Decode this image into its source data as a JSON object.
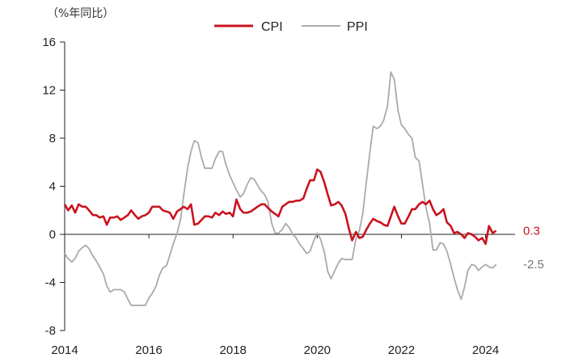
{
  "chart_data": {
    "type": "line",
    "unit_label": "（%年同比）",
    "ylim": [
      -8,
      16
    ],
    "yticks": [
      -8,
      -4,
      0,
      4,
      8,
      12,
      16
    ],
    "xlim": [
      2014.0,
      2024.7
    ],
    "xticks": [
      2014,
      2016,
      2018,
      2020,
      2022,
      2024
    ],
    "grid": false,
    "legend": "top-center",
    "series": [
      {
        "name": "CPI",
        "color": "#c8141e",
        "end_label": "0.3",
        "points": [
          [
            2014.0,
            2.5
          ],
          [
            2014.08,
            2.0
          ],
          [
            2014.17,
            2.4
          ],
          [
            2014.25,
            1.8
          ],
          [
            2014.33,
            2.5
          ],
          [
            2014.42,
            2.3
          ],
          [
            2014.5,
            2.3
          ],
          [
            2014.58,
            2.0
          ],
          [
            2014.67,
            1.6
          ],
          [
            2014.75,
            1.6
          ],
          [
            2014.83,
            1.4
          ],
          [
            2014.92,
            1.5
          ],
          [
            2015.0,
            0.8
          ],
          [
            2015.08,
            1.4
          ],
          [
            2015.17,
            1.4
          ],
          [
            2015.25,
            1.5
          ],
          [
            2015.33,
            1.2
          ],
          [
            2015.42,
            1.4
          ],
          [
            2015.5,
            1.6
          ],
          [
            2015.58,
            2.0
          ],
          [
            2015.67,
            1.6
          ],
          [
            2015.75,
            1.3
          ],
          [
            2015.83,
            1.5
          ],
          [
            2015.92,
            1.6
          ],
          [
            2016.0,
            1.8
          ],
          [
            2016.08,
            2.3
          ],
          [
            2016.17,
            2.3
          ],
          [
            2016.25,
            2.3
          ],
          [
            2016.33,
            2.0
          ],
          [
            2016.42,
            1.9
          ],
          [
            2016.5,
            1.8
          ],
          [
            2016.58,
            1.3
          ],
          [
            2016.67,
            1.9
          ],
          [
            2016.75,
            2.1
          ],
          [
            2016.83,
            2.3
          ],
          [
            2016.92,
            2.1
          ],
          [
            2017.0,
            2.5
          ],
          [
            2017.08,
            0.8
          ],
          [
            2017.17,
            0.9
          ],
          [
            2017.25,
            1.2
          ],
          [
            2017.33,
            1.5
          ],
          [
            2017.42,
            1.5
          ],
          [
            2017.5,
            1.4
          ],
          [
            2017.58,
            1.8
          ],
          [
            2017.67,
            1.6
          ],
          [
            2017.75,
            1.9
          ],
          [
            2017.83,
            1.7
          ],
          [
            2017.92,
            1.8
          ],
          [
            2018.0,
            1.5
          ],
          [
            2018.08,
            2.9
          ],
          [
            2018.17,
            2.1
          ],
          [
            2018.25,
            1.8
          ],
          [
            2018.33,
            1.8
          ],
          [
            2018.42,
            1.9
          ],
          [
            2018.5,
            2.1
          ],
          [
            2018.58,
            2.3
          ],
          [
            2018.67,
            2.5
          ],
          [
            2018.75,
            2.5
          ],
          [
            2018.83,
            2.2
          ],
          [
            2018.92,
            1.9
          ],
          [
            2019.0,
            1.7
          ],
          [
            2019.08,
            1.5
          ],
          [
            2019.17,
            2.3
          ],
          [
            2019.25,
            2.5
          ],
          [
            2019.33,
            2.7
          ],
          [
            2019.42,
            2.7
          ],
          [
            2019.5,
            2.8
          ],
          [
            2019.58,
            2.8
          ],
          [
            2019.67,
            3.0
          ],
          [
            2019.75,
            3.8
          ],
          [
            2019.83,
            4.5
          ],
          [
            2019.92,
            4.5
          ],
          [
            2020.0,
            5.4
          ],
          [
            2020.08,
            5.2
          ],
          [
            2020.17,
            4.3
          ],
          [
            2020.25,
            3.3
          ],
          [
            2020.33,
            2.4
          ],
          [
            2020.42,
            2.5
          ],
          [
            2020.5,
            2.7
          ],
          [
            2020.58,
            2.4
          ],
          [
            2020.67,
            1.7
          ],
          [
            2020.75,
            0.5
          ],
          [
            2020.83,
            -0.5
          ],
          [
            2020.92,
            0.2
          ],
          [
            2021.0,
            -0.3
          ],
          [
            2021.08,
            -0.2
          ],
          [
            2021.17,
            0.4
          ],
          [
            2021.25,
            0.9
          ],
          [
            2021.33,
            1.3
          ],
          [
            2021.42,
            1.1
          ],
          [
            2021.5,
            1.0
          ],
          [
            2021.58,
            0.8
          ],
          [
            2021.67,
            0.7
          ],
          [
            2021.75,
            1.5
          ],
          [
            2021.83,
            2.3
          ],
          [
            2021.92,
            1.5
          ],
          [
            2022.0,
            0.9
          ],
          [
            2022.08,
            0.9
          ],
          [
            2022.17,
            1.5
          ],
          [
            2022.25,
            2.1
          ],
          [
            2022.33,
            2.1
          ],
          [
            2022.42,
            2.5
          ],
          [
            2022.5,
            2.7
          ],
          [
            2022.58,
            2.5
          ],
          [
            2022.67,
            2.8
          ],
          [
            2022.75,
            2.1
          ],
          [
            2022.83,
            1.6
          ],
          [
            2022.92,
            1.8
          ],
          [
            2023.0,
            2.1
          ],
          [
            2023.08,
            1.0
          ],
          [
            2023.17,
            0.7
          ],
          [
            2023.25,
            0.1
          ],
          [
            2023.33,
            0.2
          ],
          [
            2023.42,
            0.0
          ],
          [
            2023.5,
            -0.3
          ],
          [
            2023.58,
            0.1
          ],
          [
            2023.67,
            0.0
          ],
          [
            2023.75,
            -0.2
          ],
          [
            2023.83,
            -0.5
          ],
          [
            2023.92,
            -0.3
          ],
          [
            2024.0,
            -0.8
          ],
          [
            2024.08,
            0.7
          ],
          [
            2024.17,
            0.1
          ],
          [
            2024.25,
            0.3
          ]
        ]
      },
      {
        "name": "PPI",
        "color": "#aaaaaa",
        "end_label": "-2.5",
        "points": [
          [
            2014.0,
            -1.6
          ],
          [
            2014.08,
            -2.0
          ],
          [
            2014.17,
            -2.3
          ],
          [
            2014.25,
            -2.0
          ],
          [
            2014.33,
            -1.4
          ],
          [
            2014.42,
            -1.1
          ],
          [
            2014.5,
            -0.9
          ],
          [
            2014.58,
            -1.2
          ],
          [
            2014.67,
            -1.8
          ],
          [
            2014.75,
            -2.2
          ],
          [
            2014.83,
            -2.7
          ],
          [
            2014.92,
            -3.3
          ],
          [
            2015.0,
            -4.3
          ],
          [
            2015.08,
            -4.8
          ],
          [
            2015.17,
            -4.6
          ],
          [
            2015.25,
            -4.6
          ],
          [
            2015.33,
            -4.6
          ],
          [
            2015.42,
            -4.8
          ],
          [
            2015.5,
            -5.4
          ],
          [
            2015.58,
            -5.9
          ],
          [
            2015.67,
            -5.9
          ],
          [
            2015.75,
            -5.9
          ],
          [
            2015.83,
            -5.9
          ],
          [
            2015.92,
            -5.9
          ],
          [
            2016.0,
            -5.3
          ],
          [
            2016.08,
            -4.9
          ],
          [
            2016.17,
            -4.3
          ],
          [
            2016.25,
            -3.4
          ],
          [
            2016.33,
            -2.8
          ],
          [
            2016.42,
            -2.6
          ],
          [
            2016.5,
            -1.7
          ],
          [
            2016.58,
            -0.8
          ],
          [
            2016.67,
            0.1
          ],
          [
            2016.75,
            1.2
          ],
          [
            2016.83,
            3.3
          ],
          [
            2016.92,
            5.5
          ],
          [
            2017.0,
            6.9
          ],
          [
            2017.08,
            7.8
          ],
          [
            2017.17,
            7.6
          ],
          [
            2017.25,
            6.4
          ],
          [
            2017.33,
            5.5
          ],
          [
            2017.42,
            5.5
          ],
          [
            2017.5,
            5.5
          ],
          [
            2017.58,
            6.3
          ],
          [
            2017.67,
            6.9
          ],
          [
            2017.75,
            6.9
          ],
          [
            2017.83,
            5.8
          ],
          [
            2017.92,
            4.9
          ],
          [
            2018.0,
            4.3
          ],
          [
            2018.08,
            3.7
          ],
          [
            2018.17,
            3.1
          ],
          [
            2018.25,
            3.4
          ],
          [
            2018.33,
            4.1
          ],
          [
            2018.42,
            4.7
          ],
          [
            2018.5,
            4.6
          ],
          [
            2018.58,
            4.1
          ],
          [
            2018.67,
            3.6
          ],
          [
            2018.75,
            3.3
          ],
          [
            2018.83,
            2.7
          ],
          [
            2018.92,
            0.9
          ],
          [
            2019.0,
            0.1
          ],
          [
            2019.08,
            0.1
          ],
          [
            2019.17,
            0.4
          ],
          [
            2019.25,
            0.9
          ],
          [
            2019.33,
            0.6
          ],
          [
            2019.42,
            0.0
          ],
          [
            2019.5,
            -0.3
          ],
          [
            2019.58,
            -0.8
          ],
          [
            2019.67,
            -1.2
          ],
          [
            2019.75,
            -1.6
          ],
          [
            2019.83,
            -1.4
          ],
          [
            2019.92,
            -0.5
          ],
          [
            2020.0,
            0.1
          ],
          [
            2020.08,
            -0.4
          ],
          [
            2020.17,
            -1.5
          ],
          [
            2020.25,
            -3.1
          ],
          [
            2020.33,
            -3.7
          ],
          [
            2020.42,
            -3.0
          ],
          [
            2020.5,
            -2.4
          ],
          [
            2020.58,
            -2.0
          ],
          [
            2020.67,
            -2.1
          ],
          [
            2020.75,
            -2.1
          ],
          [
            2020.83,
            -2.1
          ],
          [
            2020.92,
            -0.4
          ],
          [
            2021.0,
            0.3
          ],
          [
            2021.08,
            1.7
          ],
          [
            2021.17,
            4.4
          ],
          [
            2021.25,
            6.8
          ],
          [
            2021.33,
            9.0
          ],
          [
            2021.42,
            8.8
          ],
          [
            2021.5,
            9.0
          ],
          [
            2021.58,
            9.5
          ],
          [
            2021.67,
            10.7
          ],
          [
            2021.75,
            13.5
          ],
          [
            2021.83,
            12.9
          ],
          [
            2021.92,
            10.3
          ],
          [
            2022.0,
            9.1
          ],
          [
            2022.08,
            8.8
          ],
          [
            2022.17,
            8.3
          ],
          [
            2022.25,
            8.0
          ],
          [
            2022.33,
            6.4
          ],
          [
            2022.42,
            6.1
          ],
          [
            2022.5,
            4.2
          ],
          [
            2022.58,
            2.3
          ],
          [
            2022.67,
            0.9
          ],
          [
            2022.75,
            -1.3
          ],
          [
            2022.83,
            -1.3
          ],
          [
            2022.92,
            -0.7
          ],
          [
            2023.0,
            -0.8
          ],
          [
            2023.08,
            -1.4
          ],
          [
            2023.17,
            -2.5
          ],
          [
            2023.25,
            -3.6
          ],
          [
            2023.33,
            -4.6
          ],
          [
            2023.42,
            -5.4
          ],
          [
            2023.5,
            -4.4
          ],
          [
            2023.58,
            -3.0
          ],
          [
            2023.67,
            -2.5
          ],
          [
            2023.75,
            -2.6
          ],
          [
            2023.83,
            -3.0
          ],
          [
            2023.92,
            -2.7
          ],
          [
            2024.0,
            -2.5
          ],
          [
            2024.08,
            -2.7
          ],
          [
            2024.17,
            -2.8
          ],
          [
            2024.25,
            -2.5
          ]
        ]
      }
    ]
  }
}
